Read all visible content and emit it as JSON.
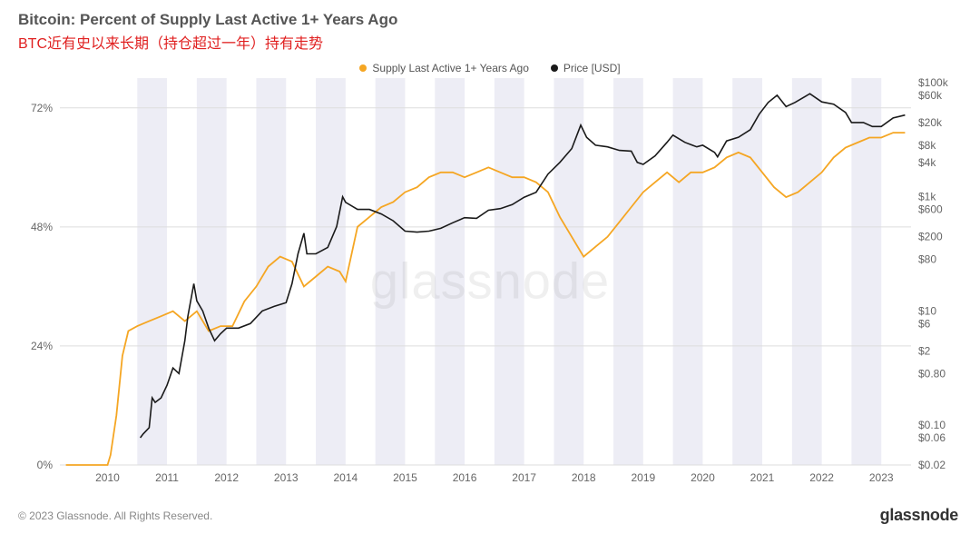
{
  "header": {
    "title": "Bitcoin: Percent of Supply Last Active 1+ Years Ago",
    "subtitle": "BTC近有史以来长期（持仓超过一年）持有走势"
  },
  "legend": {
    "supply": {
      "label": "Supply Last Active 1+ Years Ago",
      "color": "#f5a623"
    },
    "price": {
      "label": "Price [USD]",
      "color": "#1a1a1a"
    }
  },
  "footer": {
    "copyright": "© 2023 Glassnode. All Rights Reserved.",
    "brand": "glassnode"
  },
  "watermark": "glassnode",
  "chart": {
    "background_color": "#ffffff",
    "grid_color": "#dddddd",
    "band_color": "#d8d8e8",
    "x": {
      "min": 2009.2,
      "max": 2023.5,
      "ticks": [
        2010,
        2011,
        2012,
        2013,
        2014,
        2015,
        2016,
        2017,
        2018,
        2019,
        2020,
        2021,
        2022,
        2023
      ],
      "tick_labels": [
        "2010",
        "2011",
        "2012",
        "2013",
        "2014",
        "2015",
        "2016",
        "2017",
        "2018",
        "2019",
        "2020",
        "2021",
        "2022",
        "2023"
      ]
    },
    "y_left": {
      "min": 0,
      "max": 78,
      "ticks": [
        0,
        24,
        48,
        72
      ],
      "tick_labels": [
        "0%",
        "24%",
        "48%",
        "72%"
      ]
    },
    "y_right": {
      "scale": "log",
      "min": 0.02,
      "max": 120000,
      "ticks": [
        0.02,
        0.06,
        0.1,
        0.8,
        2,
        6,
        10,
        80,
        200,
        600,
        1000,
        4000,
        8000,
        20000,
        60000,
        100000
      ],
      "tick_labels": [
        "$0.02",
        "$0.06",
        "$0.10",
        "$0.80",
        "$2",
        "$6",
        "$10",
        "$80",
        "$200",
        "$600",
        "$1k",
        "$4k",
        "$8k",
        "$20k",
        "$60k",
        "$100k"
      ]
    },
    "shaded_bands": [
      [
        2010.5,
        2011.0
      ],
      [
        2011.5,
        2012.0
      ],
      [
        2012.5,
        2013.0
      ],
      [
        2013.5,
        2014.0
      ],
      [
        2014.5,
        2015.0
      ],
      [
        2015.5,
        2016.0
      ],
      [
        2016.5,
        2017.0
      ],
      [
        2017.5,
        2018.0
      ],
      [
        2018.5,
        2019.0
      ],
      [
        2019.5,
        2020.0
      ],
      [
        2020.5,
        2021.0
      ],
      [
        2021.5,
        2022.0
      ],
      [
        2022.5,
        2023.0
      ]
    ],
    "series": {
      "supply": {
        "color": "#f5a623",
        "points": [
          [
            2009.3,
            0
          ],
          [
            2010.0,
            0
          ],
          [
            2010.05,
            2
          ],
          [
            2010.15,
            10
          ],
          [
            2010.25,
            22
          ],
          [
            2010.35,
            27
          ],
          [
            2010.5,
            28
          ],
          [
            2010.7,
            29
          ],
          [
            2010.9,
            30
          ],
          [
            2011.1,
            31
          ],
          [
            2011.3,
            29
          ],
          [
            2011.5,
            31
          ],
          [
            2011.7,
            27
          ],
          [
            2011.9,
            28
          ],
          [
            2012.1,
            28
          ],
          [
            2012.3,
            33
          ],
          [
            2012.5,
            36
          ],
          [
            2012.7,
            40
          ],
          [
            2012.9,
            42
          ],
          [
            2013.1,
            41
          ],
          [
            2013.3,
            36
          ],
          [
            2013.5,
            38
          ],
          [
            2013.7,
            40
          ],
          [
            2013.9,
            39
          ],
          [
            2014.0,
            37
          ],
          [
            2014.2,
            48
          ],
          [
            2014.4,
            50
          ],
          [
            2014.6,
            52
          ],
          [
            2014.8,
            53
          ],
          [
            2015.0,
            55
          ],
          [
            2015.2,
            56
          ],
          [
            2015.4,
            58
          ],
          [
            2015.6,
            59
          ],
          [
            2015.8,
            59
          ],
          [
            2016.0,
            58
          ],
          [
            2016.2,
            59
          ],
          [
            2016.4,
            60
          ],
          [
            2016.6,
            59
          ],
          [
            2016.8,
            58
          ],
          [
            2017.0,
            58
          ],
          [
            2017.2,
            57
          ],
          [
            2017.4,
            55
          ],
          [
            2017.6,
            50
          ],
          [
            2017.8,
            46
          ],
          [
            2018.0,
            42
          ],
          [
            2018.2,
            44
          ],
          [
            2018.4,
            46
          ],
          [
            2018.6,
            49
          ],
          [
            2018.8,
            52
          ],
          [
            2019.0,
            55
          ],
          [
            2019.2,
            57
          ],
          [
            2019.4,
            59
          ],
          [
            2019.6,
            57
          ],
          [
            2019.8,
            59
          ],
          [
            2020.0,
            59
          ],
          [
            2020.2,
            60
          ],
          [
            2020.4,
            62
          ],
          [
            2020.6,
            63
          ],
          [
            2020.8,
            62
          ],
          [
            2021.0,
            59
          ],
          [
            2021.2,
            56
          ],
          [
            2021.4,
            54
          ],
          [
            2021.6,
            55
          ],
          [
            2021.8,
            57
          ],
          [
            2022.0,
            59
          ],
          [
            2022.2,
            62
          ],
          [
            2022.4,
            64
          ],
          [
            2022.6,
            65
          ],
          [
            2022.8,
            66
          ],
          [
            2023.0,
            66
          ],
          [
            2023.2,
            67
          ],
          [
            2023.4,
            67
          ]
        ]
      },
      "price": {
        "color": "#1a1a1a",
        "points": [
          [
            2010.55,
            0.06
          ],
          [
            2010.6,
            0.07
          ],
          [
            2010.7,
            0.09
          ],
          [
            2010.75,
            0.3
          ],
          [
            2010.8,
            0.25
          ],
          [
            2010.9,
            0.3
          ],
          [
            2011.0,
            0.5
          ],
          [
            2011.1,
            1.0
          ],
          [
            2011.2,
            0.8
          ],
          [
            2011.3,
            3
          ],
          [
            2011.35,
            8
          ],
          [
            2011.45,
            30
          ],
          [
            2011.5,
            15
          ],
          [
            2011.6,
            10
          ],
          [
            2011.7,
            5
          ],
          [
            2011.8,
            3
          ],
          [
            2011.9,
            4
          ],
          [
            2012.0,
            5
          ],
          [
            2012.2,
            5
          ],
          [
            2012.4,
            6
          ],
          [
            2012.6,
            10
          ],
          [
            2012.8,
            12
          ],
          [
            2013.0,
            14
          ],
          [
            2013.1,
            30
          ],
          [
            2013.2,
            100
          ],
          [
            2013.3,
            230
          ],
          [
            2013.35,
            100
          ],
          [
            2013.5,
            100
          ],
          [
            2013.7,
            130
          ],
          [
            2013.85,
            300
          ],
          [
            2013.95,
            1000
          ],
          [
            2014.0,
            800
          ],
          [
            2014.2,
            600
          ],
          [
            2014.4,
            600
          ],
          [
            2014.6,
            500
          ],
          [
            2014.8,
            380
          ],
          [
            2015.0,
            250
          ],
          [
            2015.2,
            240
          ],
          [
            2015.4,
            250
          ],
          [
            2015.6,
            280
          ],
          [
            2015.8,
            350
          ],
          [
            2016.0,
            430
          ],
          [
            2016.2,
            420
          ],
          [
            2016.4,
            580
          ],
          [
            2016.6,
            620
          ],
          [
            2016.8,
            730
          ],
          [
            2017.0,
            980
          ],
          [
            2017.2,
            1200
          ],
          [
            2017.4,
            2500
          ],
          [
            2017.6,
            4000
          ],
          [
            2017.8,
            7000
          ],
          [
            2017.95,
            18000
          ],
          [
            2018.05,
            11000
          ],
          [
            2018.2,
            8000
          ],
          [
            2018.4,
            7500
          ],
          [
            2018.6,
            6500
          ],
          [
            2018.8,
            6300
          ],
          [
            2018.9,
            4000
          ],
          [
            2019.0,
            3700
          ],
          [
            2019.2,
            5200
          ],
          [
            2019.4,
            9000
          ],
          [
            2019.5,
            12000
          ],
          [
            2019.7,
            9000
          ],
          [
            2019.9,
            7500
          ],
          [
            2020.0,
            8000
          ],
          [
            2020.2,
            6000
          ],
          [
            2020.25,
            5000
          ],
          [
            2020.4,
            9500
          ],
          [
            2020.6,
            11000
          ],
          [
            2020.8,
            15000
          ],
          [
            2020.95,
            28000
          ],
          [
            2021.1,
            45000
          ],
          [
            2021.25,
            60000
          ],
          [
            2021.4,
            38000
          ],
          [
            2021.55,
            45000
          ],
          [
            2021.8,
            64000
          ],
          [
            2022.0,
            46000
          ],
          [
            2022.2,
            42000
          ],
          [
            2022.4,
            30000
          ],
          [
            2022.5,
            20000
          ],
          [
            2022.7,
            20000
          ],
          [
            2022.85,
            17000
          ],
          [
            2023.0,
            17000
          ],
          [
            2023.2,
            24000
          ],
          [
            2023.4,
            27000
          ]
        ]
      }
    }
  }
}
